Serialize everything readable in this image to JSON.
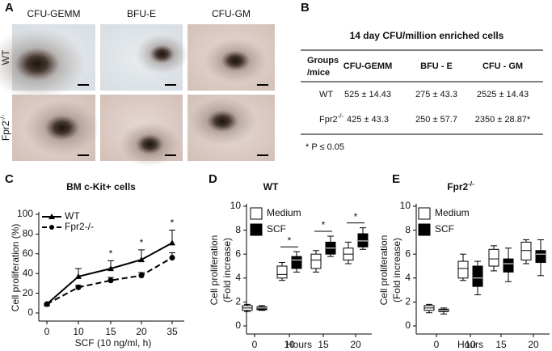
{
  "panel_labels": [
    "A",
    "B",
    "C",
    "D",
    "E"
  ],
  "images": {
    "columns": [
      "CFU-GEMM",
      "BFU-E",
      "CFU-GM"
    ],
    "rows": [
      "WT",
      {
        "text": "Fpr2",
        "sup": "-/-"
      }
    ]
  },
  "table": {
    "title": "14 day CFU/million enriched cells",
    "header": [
      [
        "Groups",
        "/mice"
      ],
      "CFU-GEMM",
      "BFU - E",
      "CFU - GM"
    ],
    "rows": [
      [
        "WT",
        "525 ± 14.43",
        "275 ± 43.3",
        "2525 ± 14.43"
      ],
      [
        {
          "text": "Fpr2",
          "sup": "-/-"
        },
        "425 ± 43.3",
        "250 ± 57.7",
        "2350 ± 28.87*"
      ]
    ],
    "footnote": "*  P ≤ 0.05"
  },
  "chart_data": [
    {
      "type": "line",
      "title": "BM c-Kit+ cells",
      "ylabel": [
        "Cell proliferation (%)"
      ],
      "xlabel": "SCF (10 ng/ml, h)",
      "categories": [
        "0",
        "10",
        "15",
        "20",
        "35"
      ],
      "series": [
        {
          "name": "WT",
          "color": "#000000",
          "marker": "triangle",
          "dash": false,
          "values": [
            9,
            37,
            45,
            54,
            71
          ],
          "errors": [
            0,
            8,
            8,
            10,
            13
          ]
        },
        {
          "name": "Fpr2-/-",
          "color": "#000000",
          "marker": "circle",
          "dash": true,
          "values": [
            9,
            26,
            33,
            38,
            56
          ],
          "errors": [
            0,
            2,
            3,
            3,
            5
          ]
        }
      ],
      "significance": [
        null,
        null,
        "*",
        "*",
        "*"
      ],
      "ylim": [
        0,
        100
      ],
      "yticks": [
        0,
        20,
        40,
        60,
        80,
        100
      ]
    },
    {
      "type": "box",
      "title": "WT",
      "ylabel": [
        "Cell proliferation",
        "(Fold increase)"
      ],
      "xlabel": "Hours",
      "categories": [
        "0",
        "10",
        "15",
        "20"
      ],
      "series": [
        {
          "name": "Medium",
          "color": "#ffffff",
          "min": [
            1.2,
            3.8,
            4.5,
            5.2
          ],
          "q1": [
            1.3,
            4.0,
            4.8,
            5.5
          ],
          "median": [
            1.5,
            4.3,
            5.5,
            6.0
          ],
          "q3": [
            1.7,
            5.0,
            6.0,
            6.5
          ],
          "max": [
            1.8,
            5.3,
            6.3,
            7.0
          ]
        },
        {
          "name": "SCF",
          "color": "#000000",
          "min": [
            1.3,
            4.5,
            5.8,
            6.4
          ],
          "q1": [
            1.35,
            4.8,
            6.0,
            6.6
          ],
          "median": [
            1.5,
            5.5,
            6.5,
            7.1
          ],
          "q3": [
            1.6,
            5.8,
            7.0,
            7.7
          ],
          "max": [
            1.7,
            6.2,
            7.5,
            8.2
          ]
        }
      ],
      "significance": [
        null,
        "*",
        "*",
        "*"
      ],
      "ylim": [
        0,
        10
      ],
      "yticks": [
        0,
        2,
        4,
        6,
        8,
        10
      ]
    },
    {
      "type": "box",
      "title": {
        "text": "Fpr2",
        "sup": "-/-"
      },
      "ylabel": [
        "Cell proliferation",
        "(Fold increase)"
      ],
      "xlabel": "Hours",
      "categories": [
        "0",
        "10",
        "15",
        "20"
      ],
      "series": [
        {
          "name": "Medium",
          "color": "#ffffff",
          "min": [
            1.1,
            3.8,
            4.6,
            5.2
          ],
          "q1": [
            1.3,
            4.0,
            5.0,
            5.5
          ],
          "median": [
            1.5,
            4.8,
            5.6,
            6.3
          ],
          "q3": [
            1.7,
            5.4,
            6.4,
            7.0
          ],
          "max": [
            1.8,
            6.0,
            6.7,
            7.2
          ]
        },
        {
          "name": "SCF",
          "color": "#000000",
          "min": [
            1.0,
            2.6,
            3.7,
            4.2
          ],
          "q1": [
            1.2,
            3.3,
            4.5,
            5.3
          ],
          "median": [
            1.3,
            4.0,
            5.2,
            6.0
          ],
          "q3": [
            1.4,
            5.0,
            5.6,
            6.3
          ],
          "max": [
            1.5,
            5.4,
            6.5,
            7.2
          ]
        }
      ],
      "ylim": [
        0,
        10
      ],
      "yticks": [
        0,
        2,
        4,
        6,
        8,
        10
      ]
    }
  ]
}
